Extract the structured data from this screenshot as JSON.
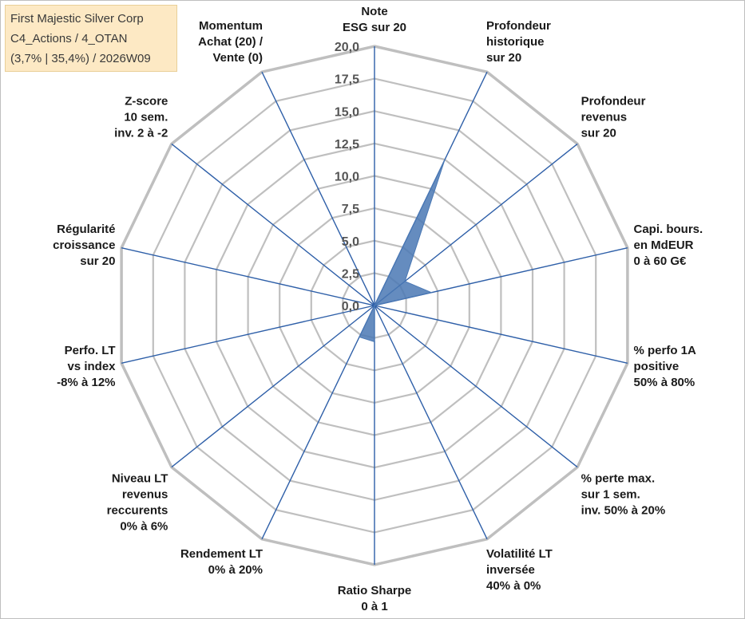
{
  "info": {
    "line1": "First Majestic Silver Corp",
    "line2": "C4_Actions / 4_OTAN",
    "line3": "(3,7% | 35,4%) / 2026W09"
  },
  "colors": {
    "grid": "#bfbfbf",
    "spoke": "#2e5fa8",
    "fill": "#4a78b4",
    "text": "#1a1a1a"
  },
  "chart_data": {
    "type": "radar",
    "title": "",
    "rmax": 20,
    "ticks": [
      "0,0",
      "2,5",
      "5,0",
      "7,5",
      "10,0",
      "12,5",
      "15,0",
      "17,5",
      "20,0"
    ],
    "axes": [
      {
        "label": [
          "Note",
          "ESG sur 20"
        ],
        "value": 0
      },
      {
        "label": [
          "Profondeur",
          "historique",
          "sur 20"
        ],
        "value": 12.5
      },
      {
        "label": [
          "Profondeur",
          "revenus",
          "sur 20"
        ],
        "value": 3.0
      },
      {
        "label": [
          "Capi. bours.",
          "en MdEUR",
          "0 à 60 G€"
        ],
        "value": 4.5
      },
      {
        "label": [
          "% perfo 1A",
          "positive",
          "50% à 80%"
        ],
        "value": 0
      },
      {
        "label": [
          "% perte max.",
          "sur 1 sem.",
          "inv. 50% à 20%"
        ],
        "value": 0
      },
      {
        "label": [
          "Volatilité LT",
          "inversée",
          "40% à 0%"
        ],
        "value": 0
      },
      {
        "label": [
          "Ratio Sharpe",
          "0 à 1"
        ],
        "value": 2.8
      },
      {
        "label": [
          "Rendement LT",
          "0% à 20%"
        ],
        "value": 2.7
      },
      {
        "label": [
          "Niveau LT",
          "revenus",
          "reccurents",
          "0% à 6%"
        ],
        "value": 0
      },
      {
        "label": [
          "Perfo. LT",
          "vs index",
          "-8% à 12%"
        ],
        "value": 0
      },
      {
        "label": [
          "Régularité",
          "croissance",
          "sur 20"
        ],
        "value": 0
      },
      {
        "label": [
          "Z-score",
          "10 sem.",
          "inv. 2 à -2"
        ],
        "value": 0
      },
      {
        "label": [
          "Momentum",
          "Achat (20) /",
          "Vente (0)"
        ],
        "value": 0
      }
    ]
  }
}
